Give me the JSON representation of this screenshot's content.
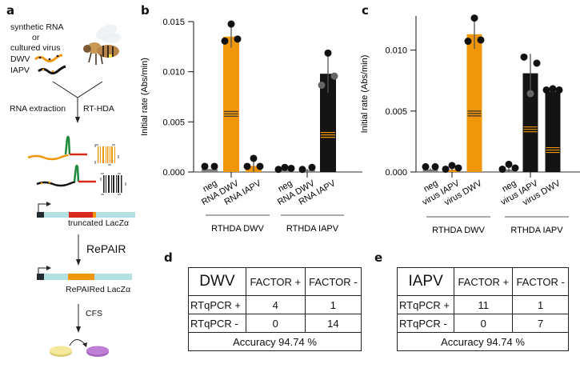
{
  "panels": {
    "a": {
      "letter": "a",
      "source_label_line1": "synthetic RNA",
      "source_label_line2": "or",
      "source_label_line3": "cultured virus",
      "virus1": "DWV",
      "virus2": "IAPV",
      "step_left": "RNA extraction",
      "step_right": "RT-HDA",
      "construct1_label": "truncated LacZα",
      "repair_label": "RePAIR",
      "construct2_label": "RePAIRed LacZα",
      "cfs_label": "CFS",
      "colors": {
        "dwv": "#f0960a",
        "iapv": "#141414",
        "hairpin": "#1f8a3c",
        "red": "#d9291c",
        "lacz": "#b3e0e0",
        "promoter": "#232a30",
        "yellow": "#f4e89a",
        "purple": "#c07fd6"
      }
    },
    "d": {
      "letter": "d",
      "corner": "DWV",
      "col_headers": [
        "FACTOR +",
        "FACTOR -"
      ],
      "rows": [
        {
          "label": "RTqPCR +",
          "values": [
            "4",
            "1"
          ]
        },
        {
          "label": "RTqPCR -",
          "values": [
            "0",
            "14"
          ]
        }
      ],
      "accuracy": "Accuracy 94.74 %"
    },
    "e": {
      "letter": "e",
      "corner": "IAPV",
      "col_headers": [
        "FACTOR +",
        "FACTOR -"
      ],
      "rows": [
        {
          "label": "RTqPCR +",
          "values": [
            "11",
            "1"
          ]
        },
        {
          "label": "RTqPCR -",
          "values": [
            "0",
            "7"
          ]
        }
      ],
      "accuracy": "Accuracy 94.74 %"
    }
  },
  "chart_data": [
    {
      "panel": "b",
      "type": "bar",
      "ylabel": "Initial rate (Abs/min)",
      "ylim": [
        0,
        0.015
      ],
      "yticks": [
        "0.000",
        "0.005",
        "0.010",
        "0.015"
      ],
      "categories": [
        "neg",
        "RNA DWV",
        "RNA IAPV",
        "neg",
        "RNA DWV",
        "RNA IAPV"
      ],
      "groups": [
        {
          "label": "RTHDA DWV",
          "indices": [
            0,
            1,
            2
          ]
        },
        {
          "label": "RTHDA IAPV",
          "indices": [
            3,
            4,
            5
          ]
        }
      ],
      "bar_color": [
        "#808080",
        "#f0960a",
        "#f0960a",
        "#808080",
        "#808080",
        "#141414"
      ],
      "values": [
        0.0003,
        0.0135,
        0.0006,
        0.0002,
        0.0002,
        0.0098
      ],
      "error_upper": [
        0.0003,
        0.0146,
        0.0012,
        0.0003,
        0.0003,
        0.0117
      ],
      "points": [
        [
          0.0004,
          0.0004
        ],
        [
          0.0129,
          0.0146,
          0.0131
        ],
        [
          0.0004,
          0.0012,
          0.0004
        ],
        [
          0.0001,
          0.0003,
          0.0002
        ],
        [
          0.0001,
          0.0003
        ],
        [
          0.0085,
          0.0117,
          0.0094
        ]
      ],
      "point_colors": [
        [
          "#111",
          "#111"
        ],
        [
          "#111",
          "#111",
          "#111"
        ],
        [
          "#111",
          "#111",
          "#111"
        ],
        [
          "#111",
          "#111",
          "#111"
        ],
        [
          "#111",
          "#111"
        ],
        [
          "#666",
          "#111",
          "#666"
        ]
      ],
      "stripe_levels": [
        null,
        0.0058,
        null,
        null,
        null,
        0.0037
      ]
    },
    {
      "panel": "c",
      "type": "bar",
      "ylabel": "Initial rate (Abs/min)",
      "ylim": [
        0,
        0.0128
      ],
      "yticks": [
        "0.000",
        "0.005",
        "0.010"
      ],
      "categories": [
        "neg",
        "virus IAPV",
        "virus DWV",
        "neg",
        "virus IAPV",
        "virus DWV"
      ],
      "groups": [
        {
          "label": "RTHDA DWV",
          "indices": [
            0,
            1,
            2
          ]
        },
        {
          "label": "RTHDA IAPV",
          "indices": [
            3,
            4,
            5
          ]
        }
      ],
      "bar_color": [
        "#808080",
        "#f0960a",
        "#f0960a",
        "#808080",
        "#141414",
        "#141414"
      ],
      "values": [
        0.0002,
        0.0002,
        0.0113,
        0.0002,
        0.0081,
        0.0066
      ],
      "error_upper": [
        0.0003,
        0.0003,
        0.0125,
        0.0004,
        0.0097,
        0.0067
      ],
      "points": [
        [
          0.0003,
          0.0003
        ],
        [
          0.0001,
          0.0004,
          0.0002
        ],
        [
          0.0106,
          0.0125,
          0.0107
        ],
        [
          0.0001,
          0.0005,
          0.0002
        ],
        [
          0.0093,
          0.0063,
          0.0088
        ],
        [
          0.0066,
          0.0067,
          0.0066
        ]
      ],
      "point_colors": [
        [
          "#111",
          "#111"
        ],
        [
          "#111",
          "#111",
          "#111"
        ],
        [
          "#111",
          "#111",
          "#111"
        ],
        [
          "#111",
          "#111",
          "#111"
        ],
        [
          "#111",
          "#666",
          "#111"
        ],
        [
          "#111",
          "#111",
          "#111"
        ]
      ],
      "stripe_levels": [
        null,
        null,
        0.0048,
        null,
        0.0035,
        0.0018
      ]
    }
  ]
}
